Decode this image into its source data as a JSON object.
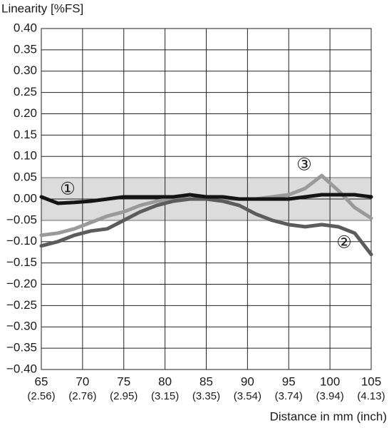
{
  "chart_data": {
    "type": "line",
    "ylabel": "Linearity [%FS]",
    "xlabel": "Distance in mm (inch)",
    "x": [
      65,
      67,
      69,
      71,
      73,
      75,
      77,
      79,
      81,
      83,
      85,
      87,
      89,
      91,
      93,
      95,
      97,
      99,
      101,
      103,
      105
    ],
    "series": [
      {
        "name": "①",
        "color": "#141414",
        "values": [
          0.005,
          -0.01,
          -0.008,
          -0.005,
          0,
          0.005,
          0.005,
          0.005,
          0.005,
          0.01,
          0.005,
          0.005,
          0,
          0,
          0,
          0,
          0.005,
          0.01,
          0.01,
          0.01,
          0.005
        ]
      },
      {
        "name": "②",
        "color": "#5c5c5c",
        "values": [
          -0.11,
          -0.1,
          -0.085,
          -0.075,
          -0.07,
          -0.05,
          -0.03,
          -0.015,
          -0.005,
          0,
          0,
          -0.005,
          -0.015,
          -0.035,
          -0.05,
          -0.06,
          -0.065,
          -0.06,
          -0.065,
          -0.08,
          -0.13
        ]
      },
      {
        "name": "③",
        "color": "#9a9a9a",
        "values": [
          -0.085,
          -0.08,
          -0.07,
          -0.055,
          -0.04,
          -0.03,
          -0.015,
          -0.005,
          0,
          0,
          0,
          0,
          0,
          0,
          0.005,
          0.01,
          0.025,
          0.055,
          0.02,
          -0.02,
          -0.045
        ]
      }
    ],
    "band": [
      -0.05,
      0.05
    ],
    "band_color": "#dcdcdc",
    "xlim": [
      65,
      105
    ],
    "xticks": [
      65,
      70,
      75,
      80,
      85,
      90,
      95,
      100,
      105
    ],
    "xtick_inch_labels": [
      "(2.56)",
      "(2.76)",
      "(2.95)",
      "(3.15)",
      "(3.35)",
      "(3.54)",
      "(3.74)",
      "(3.94)",
      "(4.13)"
    ],
    "ylim": [
      -0.4,
      0.4
    ],
    "yticks": [
      {
        "value": 0.4,
        "label": "0.40"
      },
      {
        "value": 0.35,
        "label": "0.35"
      },
      {
        "value": 0.3,
        "label": "0.30"
      },
      {
        "value": 0.25,
        "label": "0.25"
      },
      {
        "value": 0.2,
        "label": "0.20"
      },
      {
        "value": 0.15,
        "label": "0.15"
      },
      {
        "value": 0.1,
        "label": "0.10"
      },
      {
        "value": 0.05,
        "label": "0.05"
      },
      {
        "value": 0,
        "label": "0.00"
      },
      {
        "value": -0.05,
        "label": "−0.05"
      },
      {
        "value": -0.1,
        "label": "−0.10"
      },
      {
        "value": -0.15,
        "label": "−0.15"
      },
      {
        "value": -0.2,
        "label": "−0.20"
      },
      {
        "value": -0.25,
        "label": "−0.25"
      },
      {
        "value": -0.3,
        "label": "−0.30"
      },
      {
        "value": -0.35,
        "label": "−0.35"
      },
      {
        "value": -0.4,
        "label": "−0.40"
      }
    ],
    "grid": true
  }
}
